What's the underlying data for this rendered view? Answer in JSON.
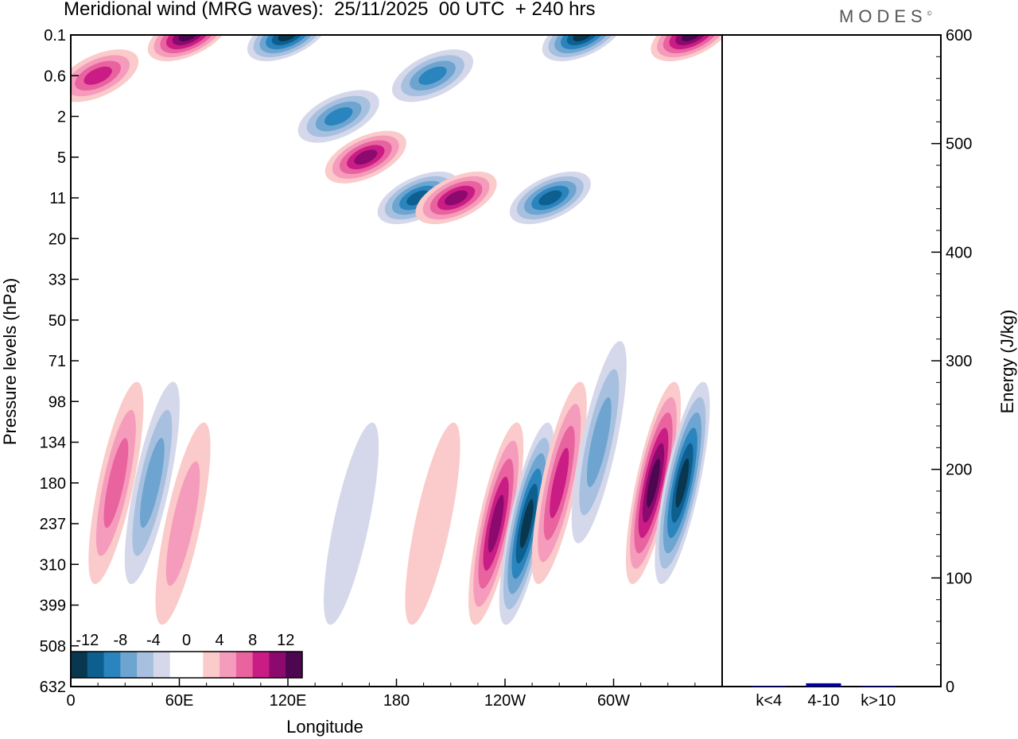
{
  "title": "Meridional wind (MRG waves):  25/11/2025  00 UTC  + 240 hrs",
  "logo": "MODES",
  "logo_mark": "©",
  "chart_data": [
    {
      "type": "contour",
      "title": "Meridional wind (MRG waves):  25/11/2025  00 UTC  + 240 hrs",
      "xlabel": "Longitude",
      "ylabel": "Pressure levels (hPa)",
      "x_ticks": [
        {
          "lon": 0,
          "label": "0"
        },
        {
          "lon": 60,
          "label": "60E"
        },
        {
          "lon": 120,
          "label": "120E"
        },
        {
          "lon": 180,
          "label": "180"
        },
        {
          "lon": 240,
          "label": "120W"
        },
        {
          "lon": 300,
          "label": "60W"
        }
      ],
      "xlim": [
        0,
        360
      ],
      "y_ticks": [
        "0.1",
        "0.6",
        "2",
        "5",
        "11",
        "20",
        "33",
        "50",
        "71",
        "98",
        "134",
        "180",
        "237",
        "310",
        "399",
        "508",
        "632"
      ],
      "colorbar": {
        "levels": [
          -14,
          -12,
          -10,
          -8,
          -6,
          -4,
          -2,
          0,
          2,
          4,
          6,
          8,
          10,
          12,
          14
        ],
        "tick_labels": [
          "-12",
          "-8",
          "-4",
          "0",
          "4",
          "8",
          "12"
        ],
        "colors": [
          "#08374f",
          "#0d5f8f",
          "#2a84bd",
          "#6ea4d0",
          "#a7c0df",
          "#d4d8ea",
          "#ffffff",
          "#ffffff",
          "#fbcaca",
          "#f59cbc",
          "#e9639f",
          "#c91d85",
          "#8c0a6e",
          "#4d0650"
        ]
      },
      "features": [
        {
          "lon": 45,
          "level": "180",
          "value": -8
        },
        {
          "lon": 25,
          "level": "180",
          "value": 8
        },
        {
          "lon": 62,
          "level": "237",
          "value": 6
        },
        {
          "lon": 155,
          "level": "237",
          "value": -4
        },
        {
          "lon": 200,
          "level": "237",
          "value": 4
        },
        {
          "lon": 235,
          "level": "237",
          "value": 12
        },
        {
          "lon": 252,
          "level": "237",
          "value": -14
        },
        {
          "lon": 270,
          "level": "180",
          "value": 10
        },
        {
          "lon": 292,
          "level": "134",
          "value": -8
        },
        {
          "lon": 322,
          "level": "180",
          "value": 14
        },
        {
          "lon": 338,
          "level": "180",
          "value": -14
        },
        {
          "lon": 15,
          "level": "0.6",
          "value": 10
        },
        {
          "lon": 65,
          "level": "0.1",
          "value": 14
        },
        {
          "lon": 120,
          "level": "0.1",
          "value": -14
        },
        {
          "lon": 148,
          "level": "2",
          "value": -10
        },
        {
          "lon": 163,
          "level": "5",
          "value": 12
        },
        {
          "lon": 192,
          "level": "11",
          "value": -12
        },
        {
          "lon": 213,
          "level": "11",
          "value": 12
        },
        {
          "lon": 265,
          "level": "11",
          "value": -12
        },
        {
          "lon": 200,
          "level": "0.6",
          "value": -10
        },
        {
          "lon": 283,
          "level": "0.1",
          "value": -14
        },
        {
          "lon": 343,
          "level": "0.1",
          "value": 14
        }
      ]
    },
    {
      "type": "bar",
      "ylabel": "Energy (J/kg)",
      "ylim": [
        0,
        600
      ],
      "y_ticks": [
        "0",
        "100",
        "200",
        "300",
        "400",
        "500",
        "600"
      ],
      "categories": [
        "k<4",
        "4-10",
        "k>10"
      ],
      "values": [
        0.5,
        3,
        0.5
      ],
      "color": "#0000a0"
    }
  ]
}
